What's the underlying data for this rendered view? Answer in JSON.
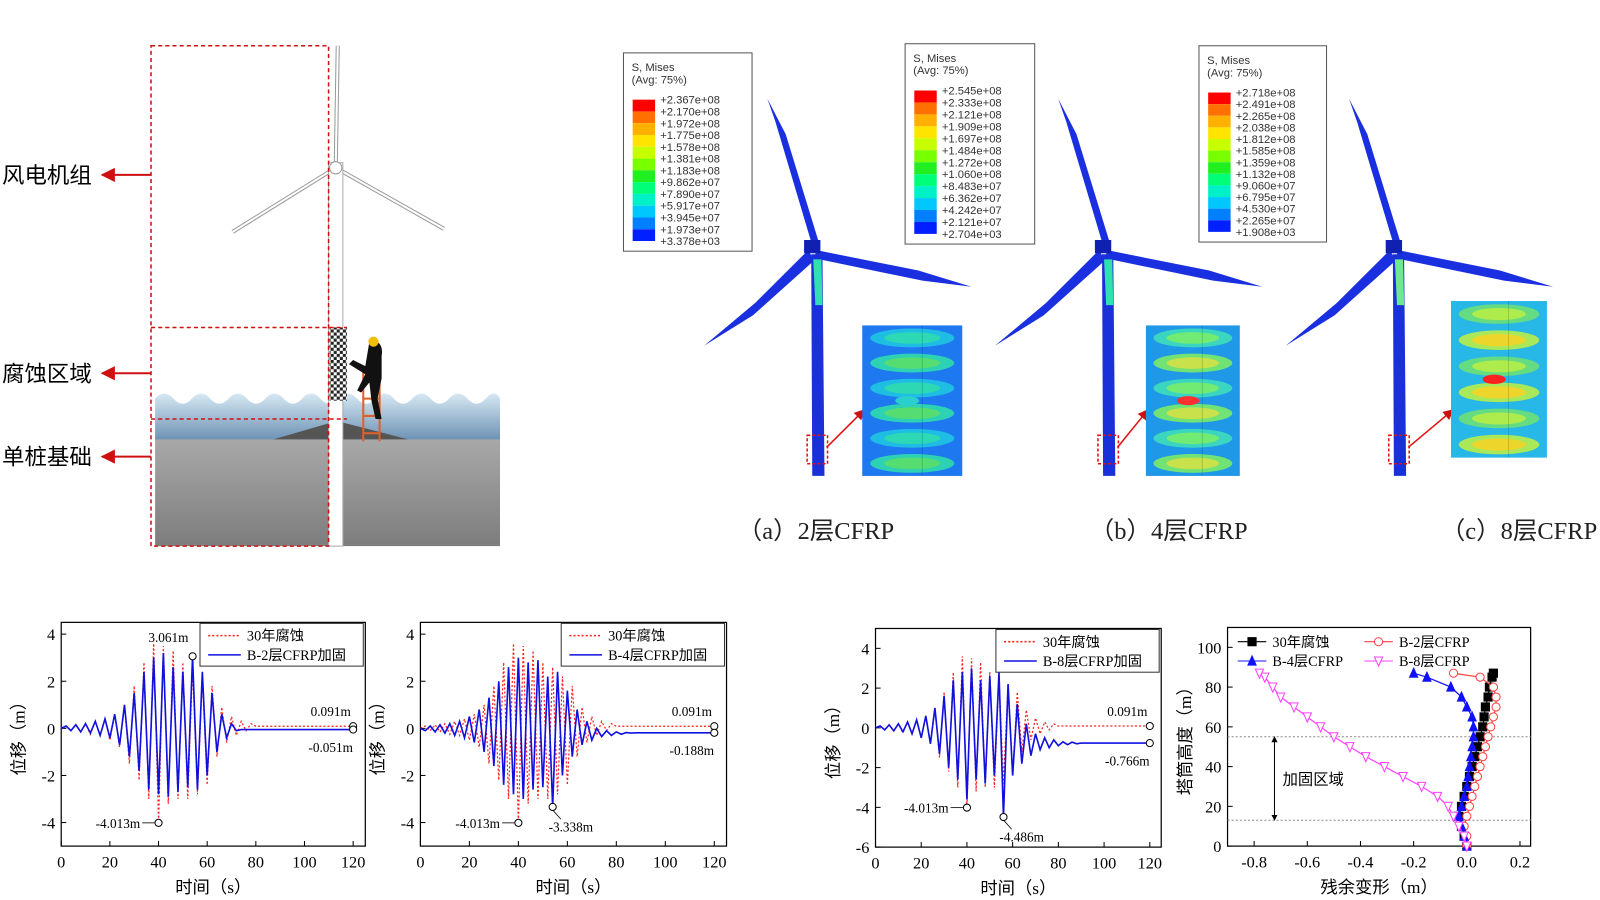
{
  "schematic": {
    "labels": [
      "风电机组",
      "腐蚀区域",
      "单桩基础"
    ]
  },
  "fe_panels": [
    {
      "legend_title": "S, Mises",
      "legend_subtitle": "(Avg: 75%)",
      "levels": [
        "+2.367e+08",
        "+2.170e+08",
        "+1.972e+08",
        "+1.775e+08",
        "+1.578e+08",
        "+1.381e+08",
        "+1.183e+08",
        "+9.862e+07",
        "+7.890e+07",
        "+5.917e+07",
        "+3.945e+07",
        "+1.973e+07",
        "+3.378e+03"
      ],
      "caption": "（a）2层CFRP"
    },
    {
      "legend_title": "S, Mises",
      "legend_subtitle": "(Avg: 75%)",
      "levels": [
        "+2.545e+08",
        "+2.333e+08",
        "+2.121e+08",
        "+1.909e+08",
        "+1.697e+08",
        "+1.484e+08",
        "+1.272e+08",
        "+1.060e+08",
        "+8.483e+07",
        "+6.362e+07",
        "+4.242e+07",
        "+2.121e+07",
        "+2.704e+03"
      ],
      "caption": "（b）4层CFRP"
    },
    {
      "legend_title": "S, Mises",
      "legend_subtitle": "(Avg: 75%)",
      "levels": [
        "+2.718e+08",
        "+2.491e+08",
        "+2.265e+08",
        "+2.038e+08",
        "+1.812e+08",
        "+1.585e+08",
        "+1.359e+08",
        "+1.132e+08",
        "+9.060e+07",
        "+6.795e+07",
        "+4.530e+07",
        "+2.265e+07",
        "+1.908e+03"
      ],
      "caption": "（c）8层CFRP"
    }
  ],
  "chart_data": [
    {
      "type": "line",
      "xlabel": "时间（s）",
      "ylabel": "位移（m）",
      "x": [
        0,
        2,
        4,
        6,
        8,
        10,
        12,
        14,
        16,
        18,
        20,
        22,
        24,
        26,
        28,
        30,
        32,
        34,
        36,
        38,
        40,
        42,
        44,
        46,
        48,
        50,
        52,
        54,
        56,
        58,
        60,
        62,
        64,
        66,
        68,
        70,
        72,
        74,
        76,
        78,
        80,
        82,
        84,
        86,
        88,
        90,
        92,
        94,
        96,
        98,
        100,
        102,
        104,
        106,
        108,
        110,
        112,
        114,
        116,
        118,
        120
      ],
      "xlim": [
        0,
        125
      ],
      "xticks": [
        0,
        20,
        40,
        60,
        80,
        100,
        120
      ],
      "ylim": [
        -5,
        4.5
      ],
      "yticks": [
        -4,
        -2,
        0,
        2,
        4
      ],
      "series": [
        {
          "name": "30年腐蚀",
          "color": "#ff2020",
          "line_style": "dotted",
          "values": [
            0,
            0.1,
            -0.1,
            0.15,
            -0.15,
            0.2,
            -0.25,
            0.3,
            -0.3,
            0.4,
            -0.5,
            0.6,
            -0.8,
            1.0,
            -1.5,
            1.8,
            -2.2,
            2.8,
            -3.0,
            3.6,
            -4.013,
            3.5,
            -3.2,
            3.3,
            -3.0,
            2.8,
            -3.0,
            2.6,
            -2.8,
            2.2,
            -2.4,
            1.8,
            -1.2,
            0.9,
            -0.6,
            0.5,
            -0.3,
            0.3,
            -0.1,
            0.2,
            0.091,
            0.091,
            0.091,
            0.091,
            0.091,
            0.091,
            0.091,
            0.091,
            0.091,
            0.091,
            0.091,
            0.091,
            0.091,
            0.091,
            0.091,
            0.091,
            0.091,
            0.091,
            0.091,
            0.091,
            0.091
          ]
        },
        {
          "name": "B-2层CFRP加固",
          "color": "#1010e0",
          "line_style": "solid",
          "values": [
            0,
            0.1,
            -0.1,
            0.15,
            -0.15,
            0.2,
            -0.2,
            0.3,
            -0.3,
            0.4,
            -0.4,
            0.6,
            -0.7,
            1.0,
            -1.2,
            1.5,
            -1.8,
            2.4,
            -2.6,
            3.0,
            -2.8,
            3.2,
            -2.9,
            2.6,
            -2.7,
            2.4,
            -2.5,
            3.061,
            -2.6,
            2.4,
            -2.0,
            1.5,
            -1.0,
            0.6,
            -0.4,
            0.2,
            -0.1,
            -0.051,
            -0.051,
            -0.051,
            -0.051,
            -0.051,
            -0.051,
            -0.051,
            -0.051,
            -0.051,
            -0.051,
            -0.051,
            -0.051,
            -0.051,
            -0.051,
            -0.051,
            -0.051,
            -0.051,
            -0.051,
            -0.051,
            -0.051,
            -0.051,
            -0.051,
            -0.051,
            -0.051
          ]
        }
      ],
      "annotations": [
        {
          "label": "3.061m",
          "x": 54,
          "y": 3.061
        },
        {
          "label": "-4.013m",
          "x": 40,
          "y": -4.013
        },
        {
          "label": "0.091m",
          "x": 120,
          "y": 0.091
        },
        {
          "label": "-0.051m",
          "x": 120,
          "y": -0.051
        }
      ]
    },
    {
      "type": "line",
      "xlabel": "时间（s）",
      "ylabel": "位移（m）",
      "x": [
        0,
        2,
        4,
        6,
        8,
        10,
        12,
        14,
        16,
        18,
        20,
        22,
        24,
        26,
        28,
        30,
        32,
        34,
        36,
        38,
        40,
        42,
        44,
        46,
        48,
        50,
        52,
        54,
        56,
        58,
        60,
        62,
        64,
        66,
        68,
        70,
        72,
        74,
        76,
        78,
        80,
        82,
        84,
        86,
        88,
        90,
        92,
        94,
        96,
        98,
        100,
        102,
        104,
        106,
        108,
        110,
        112,
        114,
        116,
        118,
        120
      ],
      "xlim": [
        0,
        125
      ],
      "xticks": [
        0,
        20,
        40,
        60,
        80,
        100,
        120
      ],
      "ylim": [
        -5,
        4.5
      ],
      "yticks": [
        -4,
        -2,
        0,
        2,
        4
      ],
      "series": [
        {
          "name": "30年腐蚀",
          "color": "#ff2020",
          "line_style": "dotted",
          "values": [
            0,
            0.1,
            -0.1,
            0.15,
            -0.15,
            0.2,
            -0.25,
            0.3,
            -0.3,
            0.4,
            -0.5,
            0.6,
            -0.8,
            1.0,
            -1.5,
            1.8,
            -2.2,
            2.8,
            -3.0,
            3.6,
            -4.013,
            3.5,
            -3.2,
            3.3,
            -3.0,
            2.8,
            -3.0,
            2.6,
            -2.8,
            2.2,
            -2.4,
            1.8,
            -1.2,
            0.9,
            -0.6,
            0.5,
            -0.3,
            0.3,
            -0.1,
            0.2,
            0.091,
            0.091,
            0.091,
            0.091,
            0.091,
            0.091,
            0.091,
            0.091,
            0.091,
            0.091,
            0.091,
            0.091,
            0.091,
            0.091,
            0.091,
            0.091,
            0.091,
            0.091,
            0.091,
            0.091,
            0.091
          ]
        },
        {
          "name": "B-4层CFRP加固",
          "color": "#1010e0",
          "line_style": "solid",
          "values": [
            0,
            -0.1,
            0.1,
            -0.15,
            0.15,
            -0.2,
            0.2,
            -0.3,
            0.3,
            -0.4,
            0.5,
            -0.6,
            0.8,
            -1.0,
            1.3,
            -1.6,
            2.0,
            -2.4,
            2.6,
            -2.8,
            3.0,
            -3.0,
            2.8,
            -2.6,
            2.9,
            -2.5,
            2.2,
            -3.338,
            2.4,
            -2.0,
            1.6,
            -1.2,
            0.8,
            -0.7,
            0.3,
            -0.5,
            0,
            -0.35,
            -0.1,
            -0.3,
            -0.15,
            -0.25,
            -0.18,
            -0.2,
            -0.188,
            -0.188,
            -0.188,
            -0.188,
            -0.188,
            -0.188,
            -0.188,
            -0.188,
            -0.188,
            -0.188,
            -0.188,
            -0.188,
            -0.188,
            -0.188,
            -0.188,
            -0.188,
            -0.188
          ]
        }
      ],
      "annotations": [
        {
          "label": "-4.013m",
          "x": 40,
          "y": -4.013
        },
        {
          "label": "-3.338m",
          "x": 54,
          "y": -3.338
        },
        {
          "label": "0.091m",
          "x": 120,
          "y": 0.091
        },
        {
          "label": "-0.188m",
          "x": 120,
          "y": -0.188
        }
      ]
    },
    {
      "type": "line",
      "xlabel": "时间（s）",
      "ylabel": "位移（m）",
      "x": [
        0,
        2,
        4,
        6,
        8,
        10,
        12,
        14,
        16,
        18,
        20,
        22,
        24,
        26,
        28,
        30,
        32,
        34,
        36,
        38,
        40,
        42,
        44,
        46,
        48,
        50,
        52,
        54,
        56,
        58,
        60,
        62,
        64,
        66,
        68,
        70,
        72,
        74,
        76,
        78,
        80,
        82,
        84,
        86,
        88,
        90,
        92,
        94,
        96,
        98,
        100,
        102,
        104,
        106,
        108,
        110,
        112,
        114,
        116,
        118,
        120
      ],
      "xlim": [
        0,
        125
      ],
      "xticks": [
        0,
        20,
        40,
        60,
        80,
        100,
        120
      ],
      "ylim": [
        -6,
        5
      ],
      "yticks": [
        -6,
        -4,
        -2,
        0,
        2,
        4
      ],
      "series": [
        {
          "name": "30年腐蚀",
          "color": "#ff2020",
          "line_style": "dotted",
          "values": [
            0,
            0.1,
            -0.1,
            0.15,
            -0.15,
            0.2,
            -0.25,
            0.3,
            -0.3,
            0.4,
            -0.5,
            0.6,
            -0.8,
            1.0,
            -1.5,
            1.8,
            -2.2,
            2.8,
            -3.0,
            3.6,
            -4.013,
            3.5,
            -3.2,
            3.3,
            -3.0,
            2.8,
            -3.0,
            2.6,
            -2.8,
            2.2,
            -2.4,
            1.8,
            -1.2,
            0.9,
            -0.6,
            0.5,
            -0.3,
            0.3,
            -0.1,
            0.2,
            0.091,
            0.091,
            0.091,
            0.091,
            0.091,
            0.091,
            0.091,
            0.091,
            0.091,
            0.091,
            0.091,
            0.091,
            0.091,
            0.091,
            0.091,
            0.091,
            0.091,
            0.091,
            0.091,
            0.091,
            0.091
          ]
        },
        {
          "name": "B-8层CFRP加固",
          "color": "#1010e0",
          "line_style": "solid",
          "values": [
            0,
            0.1,
            -0.1,
            0.15,
            -0.15,
            0.2,
            -0.2,
            0.3,
            -0.3,
            0.4,
            -0.5,
            0.6,
            -0.8,
            1.0,
            -1.3,
            1.6,
            -2.0,
            2.4,
            -2.6,
            2.8,
            -3.6,
            3.0,
            -2.6,
            2.4,
            -2.8,
            2.6,
            -2.4,
            2.8,
            -4.486,
            2.2,
            -2.4,
            1.2,
            -1.8,
            0.2,
            -1.4,
            -0.3,
            -1.1,
            -0.5,
            -1.0,
            -0.6,
            -0.9,
            -0.7,
            -0.85,
            -0.72,
            -0.8,
            -0.766,
            -0.766,
            -0.766,
            -0.766,
            -0.766,
            -0.766,
            -0.766,
            -0.766,
            -0.766,
            -0.766,
            -0.766,
            -0.766,
            -0.766,
            -0.766,
            -0.766,
            -0.766
          ]
        }
      ],
      "annotations": [
        {
          "label": "-4.013m",
          "x": 40,
          "y": -4.013
        },
        {
          "label": "-4.486m",
          "x": 56,
          "y": -4.486
        },
        {
          "label": "0.091m",
          "x": 120,
          "y": 0.091
        },
        {
          "label": "-0.766m",
          "x": 120,
          "y": -0.766
        }
      ]
    },
    {
      "type": "scatter",
      "xlabel": "残余变形（m）",
      "ylabel": "塔筒高度（m）",
      "xlim": [
        -0.9,
        0.24
      ],
      "xticks": [
        -0.8,
        -0.6,
        -0.4,
        -0.2,
        {
          "value": 0,
          "label": "0.0"
        },
        0.2
      ],
      "ylim": [
        0,
        110
      ],
      "yticks": [
        0,
        20,
        40,
        60,
        80,
        100
      ],
      "band": {
        "label": "加固区域",
        "range": [
          13,
          55
        ]
      },
      "series": [
        {
          "name": "30年腐蚀",
          "color": "#000000",
          "marker": "square",
          "filled": true,
          "x": [
            0,
            -0.01,
            -0.02,
            -0.03,
            -0.02,
            -0.01,
            0,
            0.01,
            0.02,
            0.03,
            0.04,
            0.05,
            0.06,
            0.065,
            0.07,
            0.08,
            0.085,
            0.095,
            0.1
          ],
          "values": [
            0,
            5,
            10,
            15,
            20,
            25,
            30,
            35,
            40,
            45,
            50,
            55,
            60,
            65,
            70,
            75,
            80,
            85,
            87
          ]
        },
        {
          "name": "B-2层CFRP",
          "color": "#ff4040",
          "marker": "circle",
          "filled": false,
          "x": [
            0,
            0,
            -0.01,
            0,
            0.01,
            0.02,
            0.03,
            0.04,
            0.05,
            0.06,
            0.07,
            0.08,
            0.09,
            0.1,
            0.11,
            0.11,
            0.1,
            0.05,
            -0.05
          ],
          "values": [
            0,
            5,
            10,
            15,
            20,
            25,
            30,
            35,
            40,
            45,
            50,
            55,
            60,
            65,
            70,
            75,
            80,
            85,
            87
          ]
        },
        {
          "name": "B-4层CFRP",
          "color": "#1010ff",
          "marker": "triangle-up",
          "filled": true,
          "x": [
            0,
            -0.01,
            -0.02,
            -0.03,
            -0.02,
            -0.01,
            0,
            0.005,
            0.01,
            0.015,
            0.02,
            0.025,
            0.025,
            0.02,
            0,
            -0.02,
            -0.06,
            -0.15,
            -0.2
          ],
          "values": [
            0,
            5,
            10,
            15,
            20,
            25,
            30,
            35,
            40,
            45,
            50,
            55,
            60,
            65,
            70,
            75,
            80,
            85,
            87
          ]
        },
        {
          "name": "B-8层CFRP",
          "color": "#ff40ff",
          "marker": "triangle-down",
          "filled": false,
          "x": [
            0,
            -0.01,
            -0.03,
            -0.05,
            -0.07,
            -0.11,
            -0.17,
            -0.24,
            -0.31,
            -0.38,
            -0.44,
            -0.5,
            -0.55,
            -0.6,
            -0.65,
            -0.7,
            -0.73,
            -0.76,
            -0.78
          ],
          "values": [
            0,
            5,
            10,
            15,
            20,
            25,
            30,
            35,
            40,
            45,
            50,
            55,
            60,
            65,
            70,
            75,
            80,
            85,
            87
          ]
        }
      ]
    }
  ]
}
